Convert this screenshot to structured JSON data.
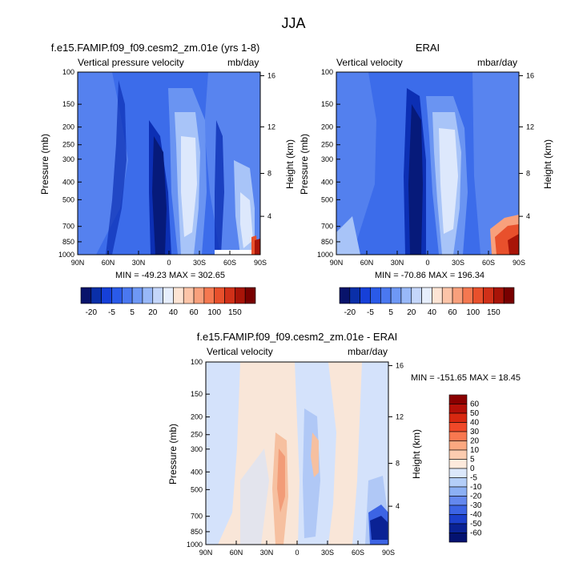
{
  "title": "JJA",
  "panels": [
    {
      "id": "model",
      "title": "f.e15.FAMIP.f09_f09.cesm2_zm.01e (yrs 1-8)",
      "left_label": "Vertical pressure velocity",
      "right_label": "mb/day",
      "stats": "MIN = -49.23  MAX = 302.65",
      "ylabel": "Pressure (mb)",
      "y2label": "Height (km)"
    },
    {
      "id": "obs",
      "title": "ERAI",
      "left_label": "Vertical velocity",
      "right_label": "mbar/day",
      "stats": "MIN = -70.86  MAX = 196.34",
      "ylabel": "Pressure (mb)",
      "y2label": "Height (km)"
    },
    {
      "id": "diff",
      "title": "f.e15.FAMIP.f09_f09.cesm2_zm.01e - ERAI",
      "left_label": "Vertical velocity",
      "right_label": "mbar/day",
      "stats": "MIN = -151.65  MAX =  18.45",
      "ylabel": "Pressure (mb)",
      "y2label": "Height (km)"
    }
  ],
  "chart_data": [
    {
      "type": "heatmap",
      "title": "f.e15.FAMIP.f09_f09.cesm2_zm.01e (yrs 1-8)",
      "x_tick_labels": [
        "90N",
        "60N",
        "30N",
        "0",
        "30S",
        "60S",
        "90S"
      ],
      "y_tick_labels": [
        "100",
        "150",
        "200",
        "250",
        "300",
        "400",
        "500",
        "700",
        "850",
        "1000"
      ],
      "y2_tick_labels": [
        "16",
        "12",
        "8",
        "4"
      ],
      "xlabel": "",
      "ylabel": "Pressure (mb)",
      "y2label": "Height (km)",
      "min": -49.23,
      "max": 302.65
    },
    {
      "type": "heatmap",
      "title": "ERAI",
      "x_tick_labels": [
        "90N",
        "60N",
        "30N",
        "0",
        "30S",
        "60S",
        "90S"
      ],
      "y_tick_labels": [
        "100",
        "150",
        "200",
        "250",
        "300",
        "400",
        "500",
        "700",
        "850",
        "1000"
      ],
      "y2_tick_labels": [
        "16",
        "12",
        "8",
        "4"
      ],
      "xlabel": "",
      "ylabel": "Pressure (mb)",
      "y2label": "Height (km)",
      "min": -70.86,
      "max": 196.34
    },
    {
      "type": "heatmap",
      "title": "f.e15.FAMIP.f09_f09.cesm2_zm.01e - ERAI",
      "x_tick_labels": [
        "90N",
        "60N",
        "30N",
        "0",
        "30S",
        "60S",
        "90S"
      ],
      "y_tick_labels": [
        "100",
        "150",
        "200",
        "250",
        "300",
        "400",
        "500",
        "700",
        "850",
        "1000"
      ],
      "y2_tick_labels": [
        "16",
        "12",
        "8",
        "4"
      ],
      "xlabel": "",
      "ylabel": "Pressure (mb)",
      "y2label": "Height (km)",
      "min": -151.65,
      "max": 18.45
    }
  ],
  "colorbar_top": {
    "labels": [
      "-20",
      "-5",
      "5",
      "20",
      "40",
      "60",
      "100",
      "150"
    ],
    "colors": [
      "#08136b",
      "#0a2fa8",
      "#1640d8",
      "#2a5ae8",
      "#4a78f0",
      "#6e98f5",
      "#98b8f8",
      "#c4d6fa",
      "#e6eefc",
      "#fde4d4",
      "#fcc4a8",
      "#f8a07c",
      "#f47850",
      "#e8502c",
      "#d03018",
      "#a81408",
      "#780000"
    ]
  },
  "colorbar_diff": {
    "labels": [
      "60",
      "50",
      "40",
      "30",
      "20",
      "10",
      "5",
      "0",
      "-5",
      "-10",
      "-20",
      "-30",
      "-40",
      "-50",
      "-60"
    ],
    "colors": [
      "#8a0000",
      "#b41008",
      "#d82810",
      "#f04828",
      "#f87850",
      "#fca880",
      "#fcccb0",
      "#fdeadc",
      "#dce8fb",
      "#b4cef8",
      "#8cb0f4",
      "#6488ee",
      "#3c64e4",
      "#1c40cc",
      "#0a2294",
      "#041270"
    ]
  },
  "field_colors": {
    "background": "#3c6cea",
    "light_blue": "#6a94f2",
    "pale": "#a8c4f8",
    "very_pale": "#dde8fc",
    "dark": "#0c2fb4",
    "darkest": "#061a7a",
    "red1": "#f8a07c",
    "red2": "#e8502c",
    "red3": "#a81408",
    "diff_bg": "#f9e6d8",
    "diff_blue": "#d4e2fb",
    "diff_blue2": "#b0c8f6",
    "diff_red": "#f6c0a0",
    "diff_red2": "#f29c78"
  }
}
